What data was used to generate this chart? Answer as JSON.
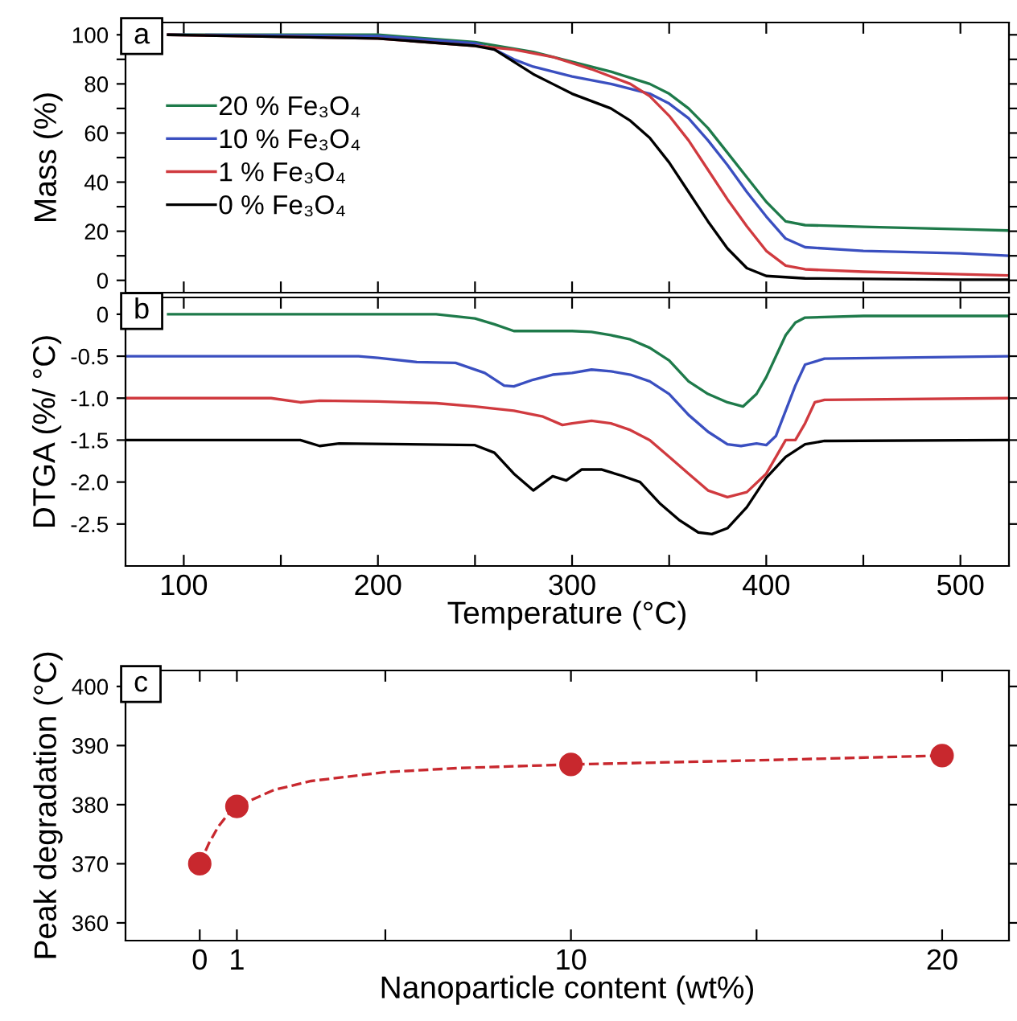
{
  "chart_data": [
    {
      "type": "line",
      "ylabel": "Mass (%)",
      "annotations": [
        "a"
      ],
      "legend": "left",
      "tick_labels": "y",
      "grid": false,
      "xlim": [
        70,
        525
      ],
      "xticks": [
        {
          "value": 100,
          "label": null
        },
        {
          "value": 150,
          "label": null
        },
        {
          "value": 200,
          "label": null
        },
        {
          "value": 250,
          "label": null
        },
        {
          "value": 300,
          "label": null
        },
        {
          "value": 350,
          "label": null
        },
        {
          "value": 400,
          "label": null
        },
        {
          "value": 450,
          "label": null
        },
        {
          "value": 500,
          "label": null
        }
      ],
      "ylim": [
        -5,
        105
      ],
      "yticks": [
        0,
        {
          "value": 10,
          "label": null
        },
        20,
        {
          "value": 30,
          "label": null
        },
        40,
        {
          "value": 50,
          "label": null
        },
        60,
        {
          "value": 70,
          "label": null
        },
        80,
        {
          "value": 90,
          "label": null
        },
        100
      ],
      "series": [
        {
          "name": "20 % Fe₃O₄",
          "color": "#1e7a4a",
          "x": [
            92,
            200,
            250,
            280,
            300,
            320,
            340,
            350,
            360,
            370,
            380,
            390,
            400,
            410,
            420,
            450,
            500,
            525
          ],
          "values": [
            100,
            100,
            97,
            93,
            89,
            85,
            80,
            76,
            70,
            62,
            52,
            42,
            32,
            24,
            22.5,
            21.8,
            20.8,
            20.3
          ]
        },
        {
          "name": "10 % Fe₃O₄",
          "color": "#3a4fc0",
          "x": [
            92,
            200,
            250,
            260,
            270,
            280,
            300,
            320,
            340,
            350,
            360,
            370,
            380,
            390,
            400,
            410,
            420,
            450,
            500,
            525
          ],
          "values": [
            100,
            99.5,
            96.5,
            94,
            90,
            87,
            83,
            80,
            76,
            72,
            66,
            57,
            47,
            36,
            26,
            17,
            13.5,
            12,
            11,
            10
          ]
        },
        {
          "name": "1 % Fe₃O₄",
          "color": "#d03a3f",
          "x": [
            92,
            200,
            250,
            270,
            290,
            310,
            330,
            340,
            350,
            360,
            370,
            380,
            390,
            400,
            410,
            420,
            450,
            500,
            525
          ],
          "values": [
            100,
            98.5,
            95.5,
            94,
            91,
            86,
            80,
            75,
            67,
            57,
            45,
            33,
            22,
            12,
            6,
            4.5,
            3.5,
            2.5,
            2
          ]
        },
        {
          "name": "0 % Fe₃O₄",
          "color": "#000000",
          "x": [
            92,
            200,
            250,
            260,
            270,
            280,
            290,
            300,
            320,
            330,
            340,
            350,
            360,
            370,
            380,
            390,
            400,
            420,
            500,
            525
          ],
          "values": [
            100,
            98.5,
            95.5,
            94,
            89,
            84,
            80,
            76,
            70,
            65,
            58,
            48,
            36,
            24,
            13,
            5,
            1.8,
            0.8,
            0.3,
            0.3
          ]
        }
      ]
    },
    {
      "type": "line",
      "xlabel": "Temperature (°C)",
      "ylabel": "DTGA (%/ °C)",
      "annotations": [
        "b"
      ],
      "grid": false,
      "xlim": [
        70,
        525
      ],
      "xticks": [
        100,
        {
          "value": 150,
          "label": null
        },
        200,
        {
          "value": 250,
          "label": null
        },
        300,
        {
          "value": 350,
          "label": null
        },
        400,
        {
          "value": 450,
          "label": null
        },
        500
      ],
      "ylim": [
        -3.0,
        0.2
      ],
      "yticks": [
        {
          "value": 0,
          "label": "0"
        },
        {
          "value": -0.5,
          "label": "-0.5"
        },
        {
          "value": -1.0,
          "label": "-1.0"
        },
        {
          "value": -1.5,
          "label": "-1.5"
        },
        {
          "value": -2.0,
          "label": "-2.0"
        },
        {
          "value": -2.5,
          "label": "-2.5"
        }
      ],
      "series": [
        {
          "color": "#1e7a4a",
          "x": [
            92,
            230,
            250,
            260,
            270,
            280,
            300,
            310,
            320,
            330,
            340,
            350,
            360,
            370,
            380,
            388,
            395,
            400,
            405,
            410,
            415,
            420,
            450,
            525
          ],
          "values": [
            0,
            0,
            -0.05,
            -0.12,
            -0.2,
            -0.2,
            -0.2,
            -0.21,
            -0.25,
            -0.3,
            -0.4,
            -0.55,
            -0.8,
            -0.95,
            -1.05,
            -1.1,
            -0.95,
            -0.75,
            -0.5,
            -0.25,
            -0.1,
            -0.04,
            -0.02,
            -0.02
          ]
        },
        {
          "color": "#3a4fc0",
          "x": [
            70,
            190,
            200,
            220,
            240,
            255,
            265,
            270,
            280,
            290,
            300,
            310,
            320,
            330,
            340,
            350,
            360,
            370,
            380,
            387,
            395,
            400,
            405,
            410,
            415,
            420,
            430,
            525
          ],
          "values": [
            -0.5,
            -0.5,
            -0.52,
            -0.57,
            -0.58,
            -0.7,
            -0.85,
            -0.86,
            -0.78,
            -0.72,
            -0.7,
            -0.66,
            -0.68,
            -0.72,
            -0.8,
            -0.95,
            -1.2,
            -1.4,
            -1.55,
            -1.57,
            -1.54,
            -1.56,
            -1.45,
            -1.15,
            -0.85,
            -0.6,
            -0.53,
            -0.5
          ]
        },
        {
          "color": "#d03a3f",
          "x": [
            70,
            145,
            160,
            170,
            200,
            230,
            250,
            270,
            285,
            295,
            300,
            310,
            320,
            330,
            340,
            350,
            360,
            370,
            380,
            390,
            400,
            405,
            410,
            415,
            420,
            425,
            430,
            525
          ],
          "values": [
            -1.0,
            -1.0,
            -1.05,
            -1.03,
            -1.04,
            -1.06,
            -1.1,
            -1.15,
            -1.22,
            -1.32,
            -1.3,
            -1.27,
            -1.3,
            -1.38,
            -1.5,
            -1.7,
            -1.9,
            -2.1,
            -2.18,
            -2.12,
            -1.9,
            -1.7,
            -1.5,
            -1.5,
            -1.3,
            -1.05,
            -1.02,
            -1.0
          ]
        },
        {
          "color": "#000000",
          "x": [
            70,
            160,
            170,
            180,
            250,
            260,
            270,
            280,
            290,
            297,
            305,
            315,
            325,
            335,
            345,
            355,
            365,
            372,
            380,
            390,
            400,
            410,
            420,
            430,
            525
          ],
          "values": [
            -1.5,
            -1.5,
            -1.57,
            -1.54,
            -1.56,
            -1.65,
            -1.9,
            -2.1,
            -1.93,
            -1.98,
            -1.85,
            -1.85,
            -1.92,
            -2.0,
            -2.25,
            -2.45,
            -2.6,
            -2.62,
            -2.55,
            -2.3,
            -1.95,
            -1.7,
            -1.55,
            -1.51,
            -1.5
          ]
        }
      ]
    },
    {
      "type": "scatter",
      "xlabel": "Nanoparticle content (wt%)",
      "ylabel": "Peak degradation (°C)",
      "annotations": [
        "c"
      ],
      "grid": false,
      "marker": "circle",
      "xlim": [
        -2,
        21.8
      ],
      "xticks": [
        0,
        1,
        {
          "value": 5,
          "label": null
        },
        10,
        {
          "value": 15,
          "label": null
        },
        20
      ],
      "ylim": [
        357,
        402.7
      ],
      "yticks": [
        360,
        370,
        380,
        390,
        400
      ],
      "series": [
        {
          "color": "#c8282e",
          "x": [
            0,
            1,
            10,
            20
          ],
          "values": [
            370,
            379.7,
            386.8,
            388.3
          ]
        },
        {
          "type": "line",
          "line_style": "dashed",
          "marker": "none",
          "color": "#c8282e",
          "x": [
            0,
            0.25,
            0.5,
            0.75,
            1,
            2,
            3,
            5,
            7,
            10,
            15,
            20
          ],
          "values": [
            370,
            373.5,
            376.3,
            378.3,
            379.7,
            382.5,
            384,
            385.5,
            386.2,
            386.8,
            387.5,
            388.3
          ]
        }
      ]
    }
  ]
}
